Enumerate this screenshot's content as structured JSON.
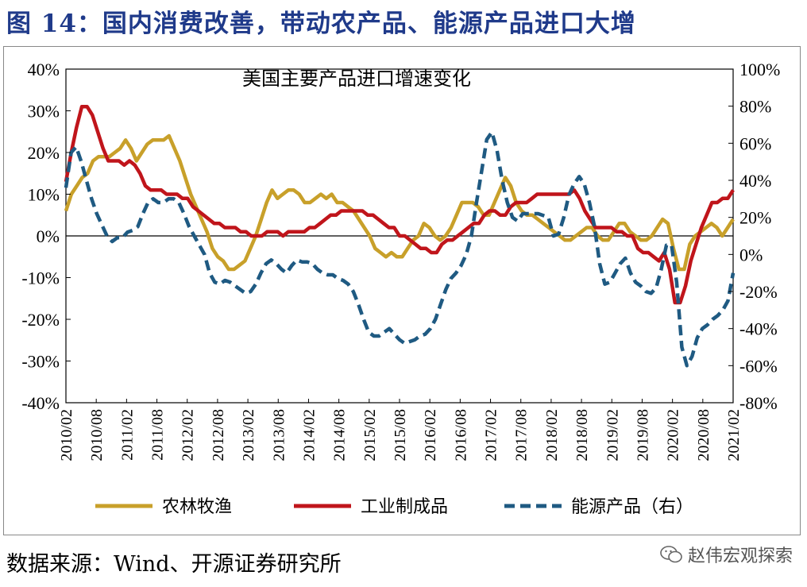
{
  "header": {
    "title": "图 14：国内消费改善，带动农产品、能源产品进口大增"
  },
  "footer": {
    "source": "数据来源：Wind、开源证券研究所",
    "watermark": "赵伟宏观探索"
  },
  "chart_data": {
    "type": "line",
    "title": "美国主要产品进口增速变化",
    "x_ticks": [
      "2010/02",
      "2010/08",
      "2011/02",
      "2011/08",
      "2012/02",
      "2012/08",
      "2013/02",
      "2013/08",
      "2014/02",
      "2014/08",
      "2015/02",
      "2015/08",
      "2016/02",
      "2016/08",
      "2017/02",
      "2017/08",
      "2018/02",
      "2018/08",
      "2019/02",
      "2019/08",
      "2020/02",
      "2020/08",
      "2021/02"
    ],
    "y_left": {
      "min": -40,
      "max": 40,
      "ticks": [
        -40,
        -30,
        -20,
        -10,
        0,
        10,
        20,
        30,
        40
      ],
      "unit": "%"
    },
    "y_right": {
      "min": -80,
      "max": 100,
      "ticks": [
        -80,
        -60,
        -40,
        -20,
        0,
        20,
        40,
        60,
        80,
        100
      ],
      "unit": "%"
    },
    "grid": false,
    "legend_position": "bottom",
    "series": [
      {
        "name": "农林牧渔",
        "axis": "left",
        "color": "#c8a02a",
        "dash": "solid",
        "values": [
          6,
          10,
          12,
          14,
          15,
          18,
          19,
          19,
          19,
          20,
          21,
          23,
          21,
          18,
          20,
          22,
          23,
          23,
          23,
          24,
          21,
          18,
          14,
          10,
          7,
          4,
          1,
          -3,
          -5,
          -6,
          -8,
          -8,
          -7,
          -6,
          -3,
          0,
          4,
          8,
          11,
          9,
          10,
          11,
          11,
          10,
          8,
          8,
          9,
          10,
          9,
          10,
          8,
          8,
          7,
          6,
          4,
          2,
          0,
          -3,
          -4,
          -5,
          -4,
          -5,
          -5,
          -3,
          -1,
          0,
          3,
          2,
          0,
          -1,
          0,
          2,
          5,
          8,
          8,
          8,
          7,
          5,
          5,
          8,
          11,
          14,
          12,
          8,
          6,
          5,
          5,
          4,
          3,
          2,
          1,
          0,
          -1,
          -1,
          0,
          1,
          2,
          2,
          0,
          -1,
          -1,
          1,
          3,
          3,
          1,
          0,
          -1,
          -1,
          0,
          2,
          4,
          3,
          -3,
          -8,
          -8,
          -2,
          0,
          1,
          2,
          3,
          2,
          0,
          2,
          4
        ]
      },
      {
        "name": "工业制成品",
        "axis": "left",
        "color": "#c0151b",
        "dash": "solid",
        "values": [
          13,
          20,
          26,
          31,
          31,
          29,
          25,
          21,
          18,
          18,
          18,
          17,
          18,
          17,
          15,
          12,
          11,
          11,
          11,
          10,
          10,
          10,
          9,
          9,
          7,
          6,
          5,
          4,
          3,
          3,
          2,
          2,
          2,
          1,
          1,
          0,
          0,
          0,
          1,
          1,
          1,
          0,
          1,
          1,
          1,
          1,
          2,
          2,
          3,
          4,
          5,
          5,
          6,
          6,
          6,
          6,
          6,
          5,
          5,
          4,
          3,
          2,
          2,
          0,
          0,
          -1,
          -2,
          -3,
          -3,
          -4,
          -4,
          -2,
          -1,
          -1,
          0,
          1,
          2,
          3,
          3,
          5,
          6,
          6,
          5,
          5,
          7,
          8,
          8,
          8,
          9,
          10,
          10,
          10,
          10,
          10,
          10,
          10,
          11,
          9,
          6,
          4,
          2,
          2,
          2,
          2,
          1,
          1,
          0,
          0,
          -3,
          -4,
          -4,
          -5,
          -6,
          -4,
          -8,
          -16,
          -16,
          -12,
          -6,
          -2,
          2,
          5,
          8,
          8,
          9,
          9,
          11
        ]
      },
      {
        "name": "能源产品（右）",
        "axis": "right",
        "color": "#1f5a82",
        "dash": "dashed",
        "values": [
          36,
          55,
          58,
          50,
          40,
          30,
          22,
          16,
          10,
          7,
          9,
          9,
          12,
          13,
          15,
          22,
          28,
          30,
          28,
          28,
          30,
          30,
          28,
          22,
          15,
          10,
          5,
          0,
          -10,
          -15,
          -16,
          -14,
          -15,
          -17,
          -19,
          -21,
          -20,
          -16,
          -10,
          -5,
          -3,
          -5,
          -8,
          -10,
          -6,
          -3,
          -4,
          -4,
          -5,
          -8,
          -10,
          -11,
          -11,
          -13,
          -14,
          -16,
          -20,
          -27,
          -35,
          -42,
          -44,
          -44,
          -42,
          -40,
          -43,
          -46,
          -48,
          -47,
          -46,
          -44,
          -43,
          -40,
          -35,
          -27,
          -19,
          -13,
          -10,
          -6,
          0,
          10,
          28,
          45,
          62,
          66,
          56,
          40,
          28,
          20,
          18,
          22,
          22,
          22,
          22,
          21,
          20,
          10,
          11,
          20,
          32,
          38,
          42,
          38,
          28,
          15,
          -5,
          -16,
          -15,
          -10,
          -5,
          -2,
          -10,
          -15,
          -17,
          -20,
          -21,
          -18,
          -8,
          5,
          5,
          -15,
          -50,
          -60,
          -55,
          -45,
          -40,
          -38,
          -35,
          -33,
          -30,
          -25,
          -10
        ]
      }
    ]
  }
}
